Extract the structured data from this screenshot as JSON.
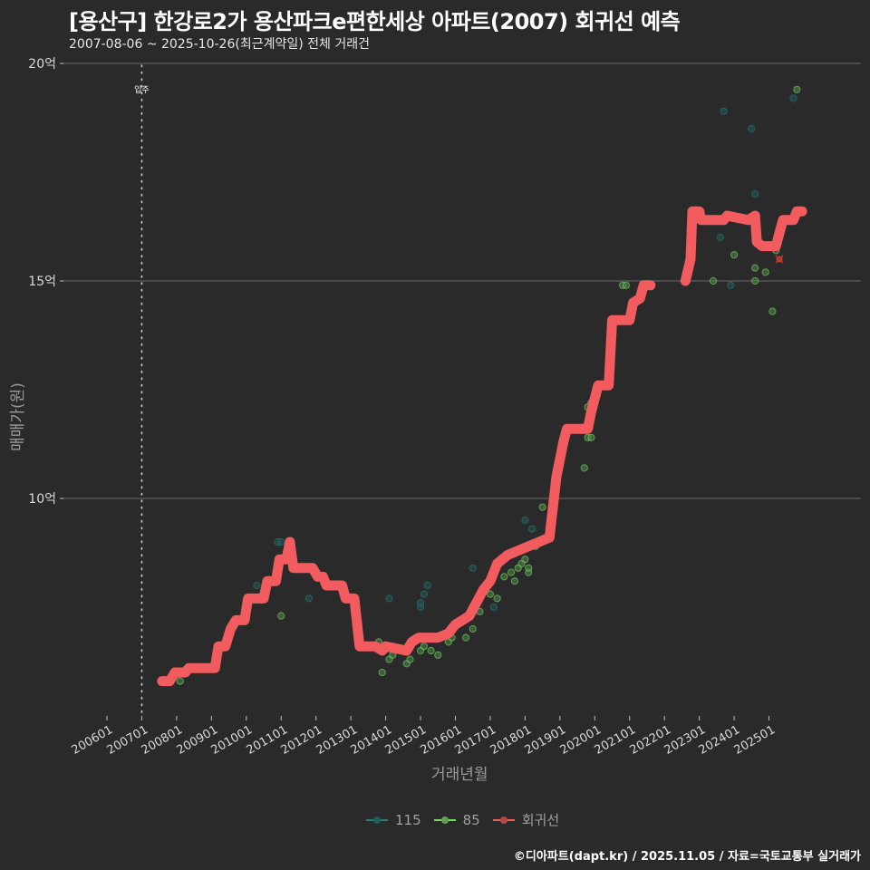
{
  "header": {
    "title": "[용산구] 한강로2가 용산파크e편한세상 아파트(2007) 회귀선 예측",
    "subtitle": "2007-08-06 ~ 2025-10-26(최근계약일) 전체 거래건"
  },
  "footer": {
    "credit": "©디아파트(dapt.kr) / 2025.11.05 / 자료=국토교통부 실거래가"
  },
  "annotation": {
    "label": "입주",
    "x_month": "200708"
  },
  "colors": {
    "background": "#2b2a2b",
    "series_115": "#2a7f7a",
    "series_85": "#7ddb6a",
    "regression": "#f25c5e",
    "grid": "#6b6b6b"
  },
  "chart_data": {
    "type": "scatter",
    "title": "[용산구] 한강로2가 용산파크e편한세상 아파트(2007) 회귀선 예측",
    "subtitle": "2007-08-06 ~ 2025-10-26(최근계약일) 전체 거래건",
    "xlabel": "거래년월",
    "ylabel": "매매가(원)",
    "x_ticks": [
      "200601",
      "200701",
      "200801",
      "200901",
      "201001",
      "201101",
      "201201",
      "201301",
      "201401",
      "201501",
      "201601",
      "201701",
      "201801",
      "201901",
      "202001",
      "202101",
      "202201",
      "202301",
      "202401",
      "202501"
    ],
    "y_ticks": [
      "10억",
      "15억",
      "20억"
    ],
    "ylim": [
      5,
      20
    ],
    "grid": true,
    "legend_position": "bottom",
    "legend": [
      "115",
      "85",
      "회귀선"
    ],
    "series": [
      {
        "name": "115",
        "unit": "억",
        "points": [
          [
            2010.3,
            8.0
          ],
          [
            2010.9,
            9.0
          ],
          [
            2011.0,
            9.0
          ],
          [
            2011.8,
            7.7
          ],
          [
            2014.1,
            7.7
          ],
          [
            2015.0,
            7.5
          ],
          [
            2015.0,
            7.6
          ],
          [
            2015.1,
            7.8
          ],
          [
            2015.2,
            8.0
          ],
          [
            2016.5,
            8.4
          ],
          [
            2017.1,
            7.5
          ],
          [
            2018.0,
            9.5
          ],
          [
            2018.2,
            9.3
          ],
          [
            2023.7,
            18.9
          ],
          [
            2023.6,
            16.0
          ],
          [
            2024.5,
            18.5
          ],
          [
            2024.6,
            17.0
          ],
          [
            2025.7,
            19.2
          ],
          [
            2023.9,
            14.9
          ]
        ]
      },
      {
        "name": "85",
        "unit": "억",
        "points": [
          [
            2008.1,
            5.8
          ],
          [
            2008.5,
            6.1
          ],
          [
            2011.0,
            7.3
          ],
          [
            2013.8,
            6.7
          ],
          [
            2013.9,
            6.0
          ],
          [
            2014.1,
            6.3
          ],
          [
            2014.2,
            6.4
          ],
          [
            2014.6,
            6.2
          ],
          [
            2014.7,
            6.3
          ],
          [
            2015.0,
            6.5
          ],
          [
            2015.1,
            6.6
          ],
          [
            2015.3,
            6.5
          ],
          [
            2015.5,
            6.4
          ],
          [
            2015.8,
            6.7
          ],
          [
            2015.9,
            6.8
          ],
          [
            2016.0,
            7.1
          ],
          [
            2016.3,
            6.8
          ],
          [
            2016.5,
            7.0
          ],
          [
            2016.7,
            7.4
          ],
          [
            2016.8,
            7.9
          ],
          [
            2017.0,
            7.8
          ],
          [
            2017.2,
            7.7
          ],
          [
            2017.4,
            8.2
          ],
          [
            2017.6,
            8.3
          ],
          [
            2017.7,
            8.1
          ],
          [
            2017.8,
            8.4
          ],
          [
            2017.9,
            8.5
          ],
          [
            2018.0,
            8.6
          ],
          [
            2018.1,
            8.3
          ],
          [
            2018.1,
            8.4
          ],
          [
            2018.3,
            8.9
          ],
          [
            2018.5,
            9.8
          ],
          [
            2019.7,
            10.7
          ],
          [
            2019.8,
            11.4
          ],
          [
            2019.9,
            11.4
          ],
          [
            2019.8,
            12.1
          ],
          [
            2019.9,
            12.2
          ],
          [
            2020.8,
            14.9
          ],
          [
            2020.9,
            14.9
          ],
          [
            2023.4,
            15.0
          ],
          [
            2024.0,
            15.6
          ],
          [
            2024.6,
            15.3
          ],
          [
            2024.6,
            15.0
          ],
          [
            2024.9,
            15.2
          ],
          [
            2025.1,
            14.3
          ],
          [
            2025.2,
            15.7
          ],
          [
            2025.8,
            19.4
          ]
        ]
      },
      {
        "name": "회귀선",
        "unit": "억",
        "line": [
          [
            2007.58,
            5.8
          ],
          [
            2007.8,
            5.8
          ],
          [
            2007.95,
            6.0
          ],
          [
            2008.25,
            6.0
          ],
          [
            2008.35,
            6.1
          ],
          [
            2009.1,
            6.1
          ],
          [
            2009.2,
            6.6
          ],
          [
            2009.4,
            6.6
          ],
          [
            2009.55,
            7.0
          ],
          [
            2009.7,
            7.2
          ],
          [
            2009.95,
            7.2
          ],
          [
            2010.05,
            7.7
          ],
          [
            2010.5,
            7.7
          ],
          [
            2010.6,
            8.1
          ],
          [
            2010.85,
            8.1
          ],
          [
            2010.95,
            8.6
          ],
          [
            2011.15,
            8.6
          ],
          [
            2011.25,
            9.0
          ],
          [
            2011.35,
            8.4
          ],
          [
            2011.9,
            8.4
          ],
          [
            2012.05,
            8.2
          ],
          [
            2012.2,
            8.2
          ],
          [
            2012.3,
            8.0
          ],
          [
            2012.75,
            8.0
          ],
          [
            2012.85,
            7.7
          ],
          [
            2013.1,
            7.7
          ],
          [
            2013.25,
            6.6
          ],
          [
            2013.7,
            6.6
          ],
          [
            2013.9,
            6.5
          ],
          [
            2014.0,
            6.6
          ],
          [
            2014.6,
            6.5
          ],
          [
            2014.75,
            6.7
          ],
          [
            2014.95,
            6.8
          ],
          [
            2015.5,
            6.8
          ],
          [
            2015.8,
            6.9
          ],
          [
            2016.0,
            7.1
          ],
          [
            2016.2,
            7.2
          ],
          [
            2016.4,
            7.3
          ],
          [
            2016.6,
            7.6
          ],
          [
            2016.8,
            7.9
          ],
          [
            2017.0,
            8.1
          ],
          [
            2017.2,
            8.5
          ],
          [
            2017.5,
            8.7
          ],
          [
            2017.8,
            8.8
          ],
          [
            2018.1,
            8.9
          ],
          [
            2018.4,
            9.0
          ],
          [
            2018.7,
            9.1
          ],
          [
            2018.9,
            10.5
          ],
          [
            2019.1,
            11.3
          ],
          [
            2019.2,
            11.6
          ],
          [
            2019.8,
            11.6
          ],
          [
            2019.9,
            12.0
          ],
          [
            2020.1,
            12.6
          ],
          [
            2020.4,
            12.6
          ],
          [
            2020.5,
            14.1
          ],
          [
            2021.0,
            14.1
          ],
          [
            2021.1,
            14.5
          ],
          [
            2021.3,
            14.6
          ],
          [
            2021.4,
            14.9
          ],
          [
            2021.6,
            14.9
          ],
          [
            2022.6,
            15.0
          ],
          [
            2022.75,
            15.5
          ],
          [
            2022.8,
            16.6
          ],
          [
            2023.0,
            16.6
          ],
          [
            2023.05,
            16.4
          ],
          [
            2023.7,
            16.4
          ],
          [
            2023.8,
            16.5
          ],
          [
            2024.4,
            16.4
          ],
          [
            2024.6,
            16.5
          ],
          [
            2024.65,
            15.9
          ],
          [
            2024.8,
            15.8
          ],
          [
            2025.2,
            15.8
          ],
          [
            2025.4,
            16.4
          ],
          [
            2025.7,
            16.4
          ],
          [
            2025.8,
            16.6
          ],
          [
            2025.95,
            16.6
          ]
        ],
        "prediction_point": [
          2025.3,
          15.5
        ]
      }
    ]
  }
}
